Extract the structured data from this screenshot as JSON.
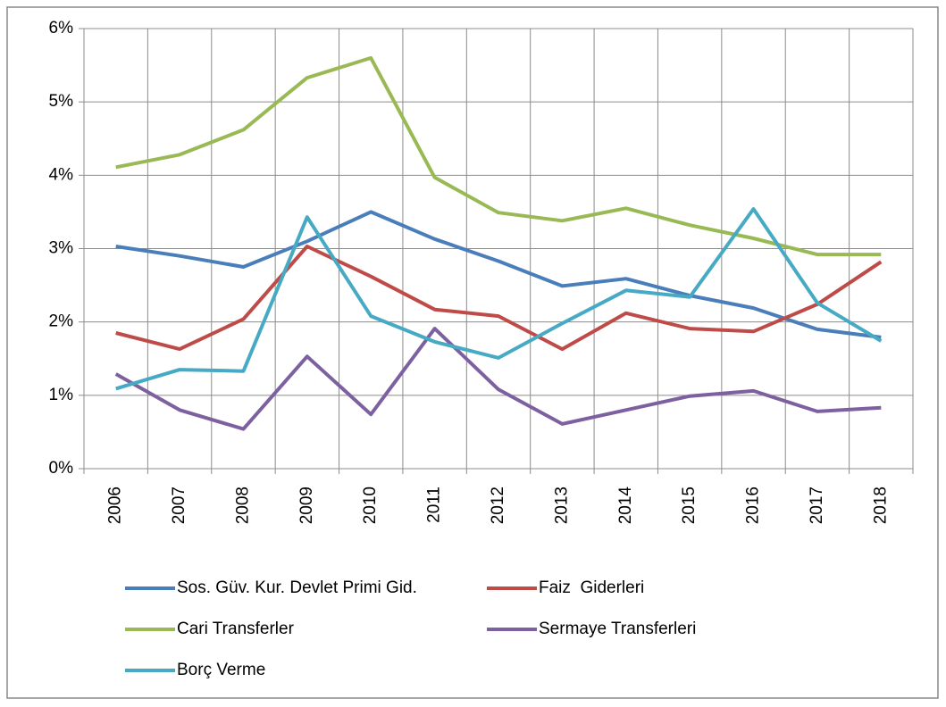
{
  "chart_data": {
    "type": "line",
    "categories": [
      "2006",
      "2007",
      "2008",
      "2009",
      "2010",
      "2011",
      "2012",
      "2013",
      "2014",
      "2015",
      "2016",
      "2017",
      "2018"
    ],
    "series": [
      {
        "name": "Sos. Güv. Kur. Devlet Primi Gid.",
        "color": "#4a7ebb",
        "values": [
          3.03,
          2.9,
          2.75,
          3.1,
          3.5,
          3.13,
          2.83,
          2.49,
          2.59,
          2.36,
          2.19,
          1.9,
          1.79
        ]
      },
      {
        "name": "Faiz  Giderleri",
        "color": "#be4b48",
        "values": [
          1.85,
          1.63,
          2.04,
          3.03,
          2.62,
          2.17,
          2.08,
          1.63,
          2.12,
          1.91,
          1.87,
          2.24,
          2.82
        ]
      },
      {
        "name": "Cari Transferler",
        "color": "#98b954",
        "values": [
          4.11,
          4.28,
          4.62,
          5.33,
          5.6,
          3.97,
          3.49,
          3.38,
          3.55,
          3.32,
          3.14,
          2.92,
          2.92
        ]
      },
      {
        "name": "Sermaye Transferleri",
        "color": "#7d60a0",
        "values": [
          1.29,
          0.8,
          0.54,
          1.53,
          0.74,
          1.91,
          1.08,
          0.61,
          0.8,
          0.99,
          1.06,
          0.78,
          0.83
        ]
      },
      {
        "name": "Borç Verme",
        "color": "#46aac5",
        "values": [
          1.09,
          1.35,
          1.33,
          3.43,
          2.08,
          1.73,
          1.51,
          1.98,
          2.43,
          2.34,
          3.54,
          2.26,
          1.74
        ]
      }
    ],
    "ylim": [
      0,
      6
    ],
    "yticks": [
      {
        "value": 0,
        "label": "0%"
      },
      {
        "value": 1,
        "label": "1%"
      },
      {
        "value": 2,
        "label": "2%"
      },
      {
        "value": 3,
        "label": "3%"
      },
      {
        "value": 4,
        "label": "4%"
      },
      {
        "value": 5,
        "label": "5%"
      },
      {
        "value": 6,
        "label": "6%"
      }
    ],
    "grid": true,
    "legend": "bottom"
  }
}
